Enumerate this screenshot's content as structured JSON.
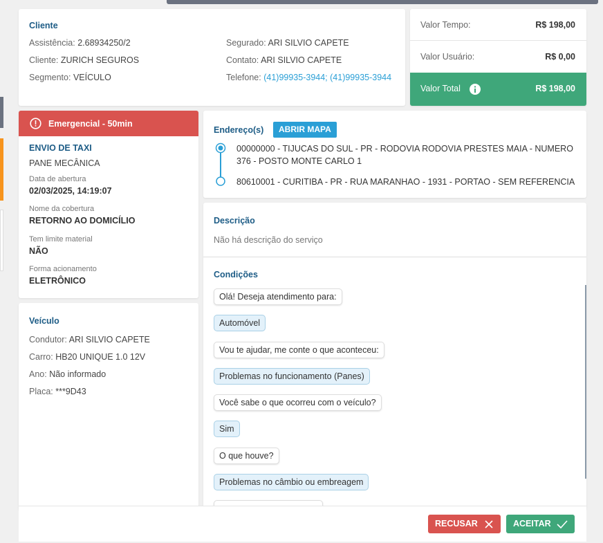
{
  "client": {
    "title": "Cliente",
    "left": [
      {
        "label": "Assistência:",
        "value": "2.68934250/2"
      },
      {
        "label": "Cliente:",
        "value": "ZURICH SEGUROS"
      },
      {
        "label": "Segmento:",
        "value": "VEÍCULO"
      }
    ],
    "right": [
      {
        "label": "Segurado:",
        "value": "ARI SILVIO CAPETE"
      },
      {
        "label": "Contato:",
        "value": "ARI SILVIO CAPETE"
      },
      {
        "label": "Telefone:",
        "value": "(41)99935-3944; (41)99935-3944"
      }
    ]
  },
  "values": {
    "rows": [
      {
        "label": "Valor Tempo:",
        "value": "R$ 198,00"
      },
      {
        "label": "Valor Usuário:",
        "value": "R$ 0,00"
      }
    ],
    "total": {
      "label": "Valor Total",
      "value": "R$ 198,00"
    }
  },
  "service": {
    "badge": "Emergencial - 50min",
    "title": "ENVIO DE TAXI",
    "subtitle": "PANE MECÂNICA",
    "fields": [
      {
        "label": "Data de abertura",
        "value": "02/03/2025, 14:19:07"
      },
      {
        "label": "Nome da cobertura",
        "value": "RETORNO AO DOMICÍLIO"
      },
      {
        "label": "Tem limite material",
        "value": "NÃO"
      },
      {
        "label": "Forma acionamento",
        "value": "ELETRÔNICO"
      }
    ]
  },
  "vehicle": {
    "title": "Veículo",
    "fields": [
      {
        "label": "Condutor:",
        "value": "ARI SILVIO CAPETE"
      },
      {
        "label": "Carro:",
        "value": "HB20 UNIQUE 1.0 12V"
      },
      {
        "label": "Ano:",
        "value": "Não informado"
      },
      {
        "label": "Placa:",
        "value": "***9D43"
      }
    ]
  },
  "addresses": {
    "title": "Endereço(s)",
    "button": "ABRIR MAPA",
    "items": [
      "00000000 - TIJUCAS DO SUL - PR - RODOVIA RODOVIA PRESTES MAIA - NUMERO 376 - POSTO MONTE CARLO 1",
      "80610001 - CURITIBA - PR - RUA MARANHAO - 1931 - PORTAO - SEM REFERENCIA"
    ]
  },
  "description": {
    "title": "Descrição",
    "text": "Não há descrição do serviço"
  },
  "conditions": {
    "title": "Condições",
    "messages": [
      "Olá! Deseja atendimento para:",
      "Automóvel",
      "Vou te ajudar, me conte o que aconteceu:",
      "Problemas no funcionamento (Panes)",
      "Você sabe o que ocorreu com o veículo?",
      "Sim",
      "O que houve?",
      "Problemas no câmbio ou embreagem"
    ]
  },
  "actions": {
    "reject": "RECUSAR",
    "accept": "ACEITAR"
  }
}
